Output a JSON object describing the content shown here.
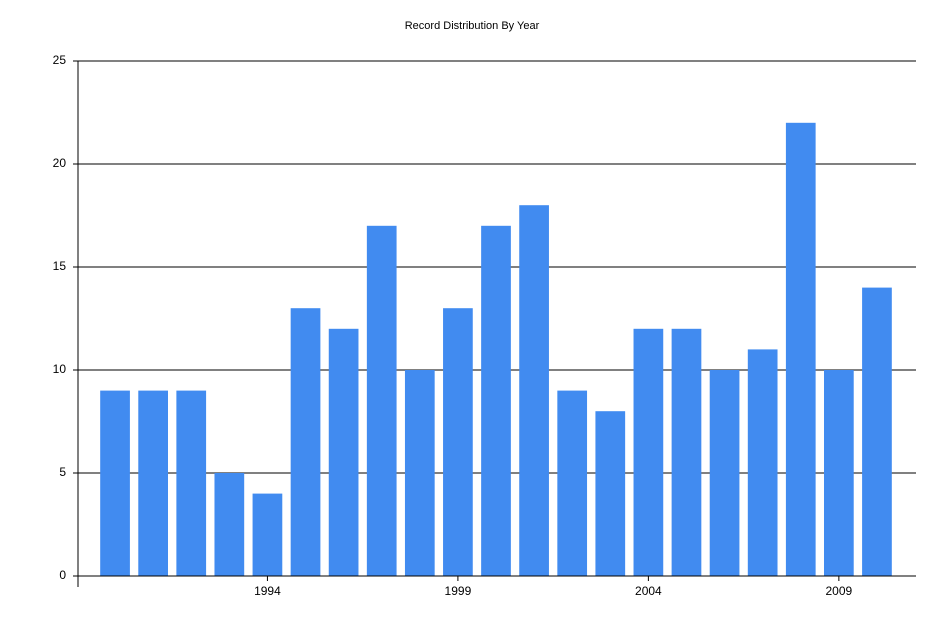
{
  "chart_data": {
    "type": "bar",
    "title": "Record Distribution By Year",
    "categories": [
      null,
      null,
      null,
      null,
      "1994",
      null,
      null,
      null,
      null,
      "1999",
      null,
      null,
      null,
      null,
      "2004",
      null,
      null,
      null,
      null,
      "2009",
      null
    ],
    "values": [
      9,
      9,
      9,
      5,
      4,
      13,
      12,
      17,
      10,
      13,
      17,
      18,
      9,
      8,
      12,
      12,
      10,
      11,
      22,
      10,
      14
    ],
    "color": "#418bf0",
    "ylim": [
      0,
      25
    ],
    "yticks": [
      0,
      5,
      10,
      15,
      20,
      25
    ],
    "grid": true
  }
}
